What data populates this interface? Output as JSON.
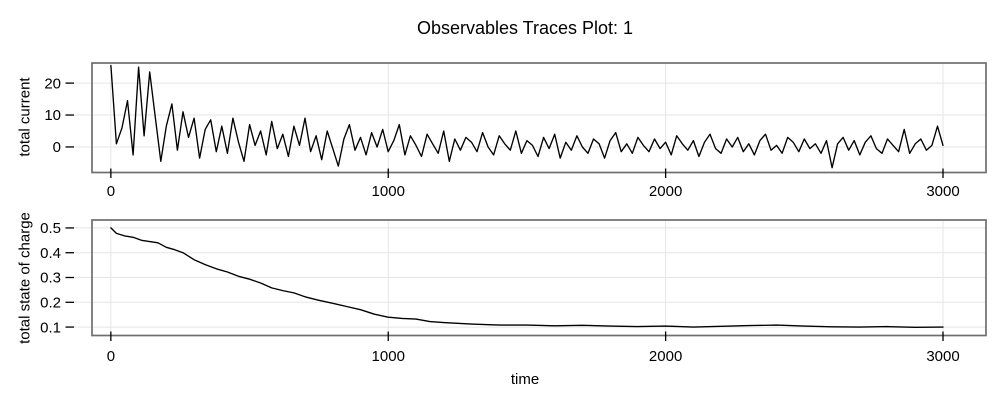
{
  "figure": {
    "title": "Observables Traces Plot: 1",
    "background": "#ffffff"
  },
  "style": {
    "trace_color": "#000000",
    "grid_color": "#e5e5e5",
    "frame_color": "#6e6e6e",
    "tick_color": "#000000",
    "text_color": "#000000"
  },
  "chart_data": [
    {
      "type": "line",
      "panel": "top",
      "title": "",
      "ylabel": "total current",
      "xlabel": "",
      "legend": null,
      "grid": true,
      "xticks": [
        0,
        1000,
        2000,
        3000
      ],
      "yticks": [
        0,
        10,
        20
      ],
      "xlim": [
        -68,
        3155
      ],
      "ylim": [
        -8,
        26.3
      ],
      "x_start": 0,
      "x_step": 20,
      "values": [
        25.5,
        1,
        6,
        14.5,
        -2.5,
        25,
        3.5,
        23.5,
        9.5,
        -4.5,
        6.5,
        13.5,
        -1,
        11,
        3,
        9,
        -3.5,
        5.5,
        8.5,
        -1.5,
        6.5,
        -2,
        9,
        1.5,
        -4.5,
        7,
        0.5,
        5,
        -2.5,
        8,
        -0.5,
        4,
        -3,
        6.5,
        0.5,
        9,
        -1.5,
        3.5,
        -4,
        5,
        -0.5,
        -6,
        2.5,
        7,
        -1,
        3,
        -2.5,
        4.5,
        0,
        5.5,
        -1.5,
        2,
        7,
        -2.5,
        3.5,
        0.5,
        -3,
        4,
        1,
        -2,
        5,
        -4.5,
        2.5,
        -1,
        3,
        1.5,
        -1.5,
        4.5,
        0,
        -2.5,
        3.5,
        1,
        -1,
        5,
        -2,
        2,
        0.5,
        -3,
        3,
        -0.5,
        4,
        -3.5,
        1.5,
        -1,
        3.5,
        0,
        -2,
        2.5,
        1,
        -3.5,
        2,
        4.5,
        -1.5,
        1,
        -2,
        3,
        0.5,
        -1.5,
        2.5,
        -0.5,
        1.5,
        -2.5,
        3.5,
        1,
        -1,
        2,
        -3,
        1.5,
        4,
        -0.5,
        -2,
        2.5,
        0,
        3,
        -1.5,
        1,
        -2.5,
        2,
        4,
        -1,
        0.5,
        -2,
        3,
        1.5,
        -1.5,
        2.5,
        -0.5,
        1,
        -2,
        2,
        -6.5,
        1,
        3,
        -1,
        2,
        -2.5,
        1.5,
        3.5,
        -0.5,
        -2,
        2.5,
        0.5,
        -1.5,
        5.5,
        -2,
        1,
        2.5,
        -1,
        0.5,
        6.5,
        0.5
      ]
    },
    {
      "type": "line",
      "panel": "bottom",
      "title": "",
      "ylabel": "total state of charge",
      "xlabel": "time",
      "legend": null,
      "grid": true,
      "xticks": [
        0,
        1000,
        2000,
        3000
      ],
      "yticks": [
        0.1,
        0.2,
        0.3,
        0.4,
        0.5
      ],
      "xlim": [
        -68,
        3155
      ],
      "ylim": [
        0.066,
        0.532
      ],
      "x": [
        0,
        20,
        50,
        80,
        110,
        140,
        170,
        200,
        230,
        260,
        300,
        340,
        380,
        420,
        460,
        500,
        540,
        580,
        620,
        660,
        700,
        750,
        800,
        850,
        900,
        950,
        1000,
        1050,
        1100,
        1150,
        1200,
        1300,
        1400,
        1500,
        1600,
        1700,
        1800,
        1900,
        2000,
        2100,
        2200,
        2300,
        2400,
        2500,
        2600,
        2700,
        2800,
        2900,
        3000
      ],
      "y": [
        0.5,
        0.478,
        0.468,
        0.462,
        0.45,
        0.445,
        0.44,
        0.422,
        0.412,
        0.4,
        0.372,
        0.352,
        0.335,
        0.322,
        0.305,
        0.293,
        0.278,
        0.258,
        0.247,
        0.238,
        0.222,
        0.208,
        0.196,
        0.183,
        0.17,
        0.152,
        0.14,
        0.135,
        0.132,
        0.122,
        0.118,
        0.112,
        0.108,
        0.108,
        0.105,
        0.107,
        0.104,
        0.102,
        0.104,
        0.1,
        0.103,
        0.106,
        0.108,
        0.104,
        0.101,
        0.1,
        0.102,
        0.099,
        0.1
      ]
    }
  ]
}
